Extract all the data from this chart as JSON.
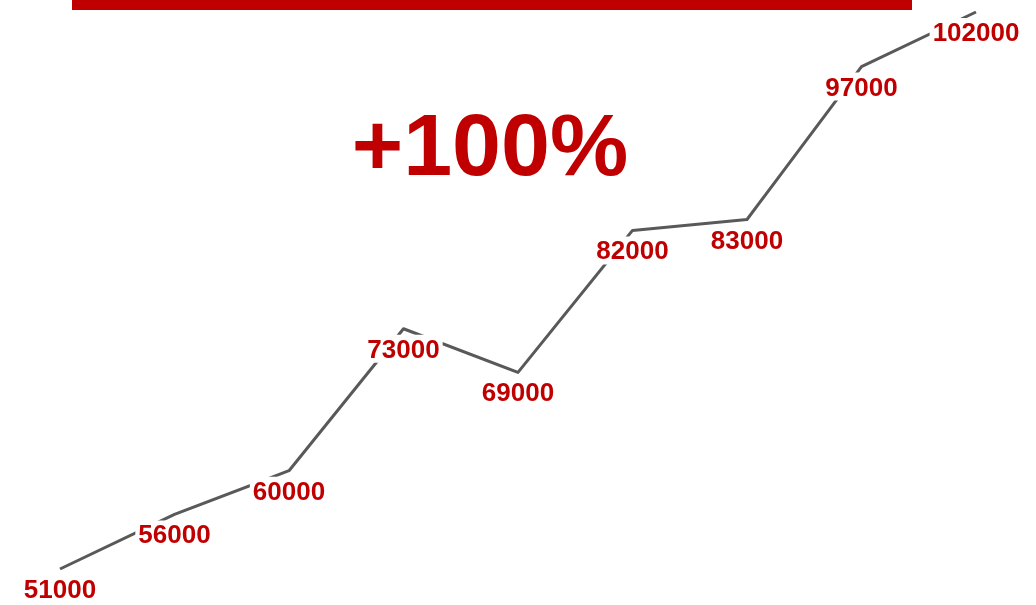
{
  "chart_data": {
    "type": "line",
    "categories": [
      null,
      null,
      null,
      null,
      null,
      null,
      null,
      null,
      null
    ],
    "series": [
      {
        "color": "#595959",
        "values": [
          51000,
          56000,
          60000,
          73000,
          69000,
          82000,
          83000,
          97000,
          102000
        ]
      }
    ],
    "data_labels": true,
    "marker": "none",
    "grid": false,
    "annotations": [
      "+100%"
    ]
  }
}
